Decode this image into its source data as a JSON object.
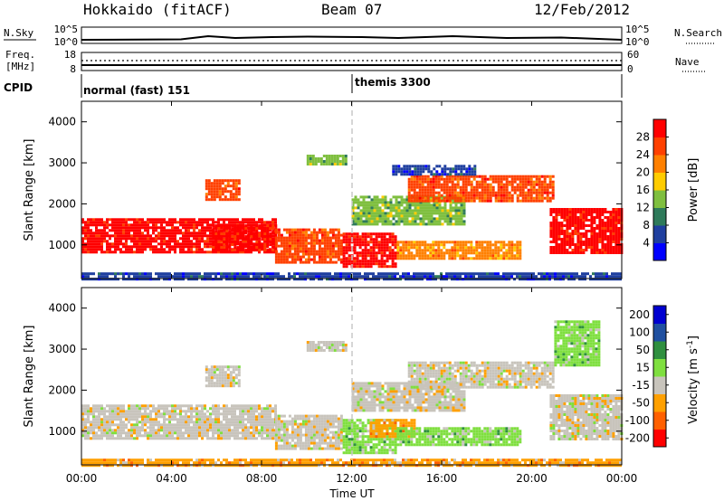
{
  "header": {
    "station": "Hokkaido (fitACF)",
    "beam": "Beam 07",
    "date": "12/Feb/2012"
  },
  "aux_panels": {
    "nsky": {
      "label": "N.Sky",
      "ticks": [
        "10^5",
        "10^0"
      ]
    },
    "nsearch": {
      "label": "N.Search",
      "ticks": [
        "10^5",
        "10^0"
      ]
    },
    "freq": {
      "label_line1": "Freq.",
      "label_line2": "[MHz]",
      "ticks": [
        "18",
        "8"
      ]
    },
    "nave": {
      "label": "Nave",
      "ticks": [
        "60",
        "0"
      ]
    },
    "cpid": {
      "label": "CPID",
      "modes": [
        {
          "name": "normal (fast) 151",
          "start_hour": 0
        },
        {
          "name": "themis 3300",
          "start_hour": 12
        }
      ]
    }
  },
  "chart_data": [
    {
      "type": "heatmap",
      "name": "power",
      "ylabel": "Slant Range [km]",
      "yticks": [
        "1000",
        "2000",
        "3000",
        "4000"
      ],
      "ylim": [
        180,
        4500
      ],
      "xlim": [
        0,
        24
      ],
      "colorbar": {
        "label": "Power [dB]",
        "ticks": [
          "4",
          "8",
          "12",
          "16",
          "20",
          "24",
          "28"
        ],
        "range": [
          0,
          32
        ],
        "colors": [
          "#0000ff",
          "#1f3f9f",
          "#2e7a5a",
          "#7fbf3f",
          "#ffcc00",
          "#ff8000",
          "#ff4000",
          "#ff0000"
        ]
      },
      "regions": [
        {
          "t0": 0.0,
          "t1": 8.6,
          "r0": 850,
          "r1": 1650,
          "level": 7
        },
        {
          "t0": 5.8,
          "t1": 8.6,
          "r0": 900,
          "r1": 1500,
          "level": 7
        },
        {
          "t0": 8.6,
          "t1": 11.6,
          "r0": 600,
          "r1": 1400,
          "level": 6
        },
        {
          "t0": 11.6,
          "t1": 14.0,
          "r0": 500,
          "r1": 1300,
          "level": 7
        },
        {
          "t0": 12.0,
          "t1": 17.0,
          "r0": 1500,
          "r1": 2200,
          "level": 3
        },
        {
          "t0": 14.0,
          "t1": 19.5,
          "r0": 700,
          "r1": 1100,
          "level": 5
        },
        {
          "t0": 14.5,
          "t1": 21.0,
          "r0": 2100,
          "r1": 2700,
          "level": 6
        },
        {
          "t0": 20.8,
          "t1": 24.0,
          "r0": 800,
          "r1": 1900,
          "level": 7
        },
        {
          "t0": 10.0,
          "t1": 11.8,
          "r0": 3000,
          "r1": 3200,
          "level": 3
        },
        {
          "t0": 13.8,
          "t1": 17.5,
          "r0": 2700,
          "r1": 2950,
          "level": 1
        },
        {
          "t0": 5.5,
          "t1": 7.0,
          "r0": 2100,
          "r1": 2600,
          "level": 6
        },
        {
          "t0": 0.0,
          "t1": 24.0,
          "r0": 180,
          "r1": 330,
          "level": 1
        }
      ]
    },
    {
      "type": "heatmap",
      "name": "velocity",
      "ylabel": "Slant Range [km]",
      "yticks": [
        "1000",
        "2000",
        "3000",
        "4000"
      ],
      "ylim": [
        180,
        4500
      ],
      "xlim": [
        0,
        24
      ],
      "colorbar": {
        "label": "Velocity [m s",
        "label_sup": "-1",
        "label_end": "]",
        "ticks": [
          "200",
          "100",
          "50",
          "15",
          "-15",
          "-50",
          "-100",
          "-200"
        ],
        "range": [
          -250,
          250
        ],
        "colors": [
          "#ff0000",
          "#ff6000",
          "#ffa000",
          "#c8c4bc",
          "#7fdf3f",
          "#2f8f3f",
          "#2050a0",
          "#0000d0"
        ]
      },
      "regions": [
        {
          "t0": 0.0,
          "t1": 8.6,
          "r0": 850,
          "r1": 1650,
          "level": 3
        },
        {
          "t0": 8.6,
          "t1": 11.6,
          "r0": 600,
          "r1": 1400,
          "level": 3
        },
        {
          "t0": 11.6,
          "t1": 14.0,
          "r0": 500,
          "r1": 1300,
          "level": 4
        },
        {
          "t0": 12.8,
          "t1": 14.8,
          "r0": 900,
          "r1": 1300,
          "level": 2
        },
        {
          "t0": 14.0,
          "t1": 19.5,
          "r0": 700,
          "r1": 1100,
          "level": 4
        },
        {
          "t0": 12.0,
          "t1": 17.0,
          "r0": 1500,
          "r1": 2200,
          "level": 3
        },
        {
          "t0": 14.5,
          "t1": 21.0,
          "r0": 2100,
          "r1": 2700,
          "level": 3
        },
        {
          "t0": 20.8,
          "t1": 24.0,
          "r0": 800,
          "r1": 1900,
          "level": 3
        },
        {
          "t0": 21.0,
          "t1": 23.0,
          "r0": 2600,
          "r1": 3700,
          "level": 4
        },
        {
          "t0": 10.0,
          "t1": 11.8,
          "r0": 3000,
          "r1": 3200,
          "level": 3
        },
        {
          "t0": 5.5,
          "t1": 7.0,
          "r0": 2100,
          "r1": 2600,
          "level": 3
        },
        {
          "t0": 0.0,
          "t1": 24.0,
          "r0": 180,
          "r1": 330,
          "level": 2
        }
      ]
    }
  ],
  "xaxis": {
    "label": "Time UT",
    "ticks": [
      "00:00",
      "04:00",
      "08:00",
      "12:00",
      "16:00",
      "20:00",
      "00:00"
    ]
  }
}
